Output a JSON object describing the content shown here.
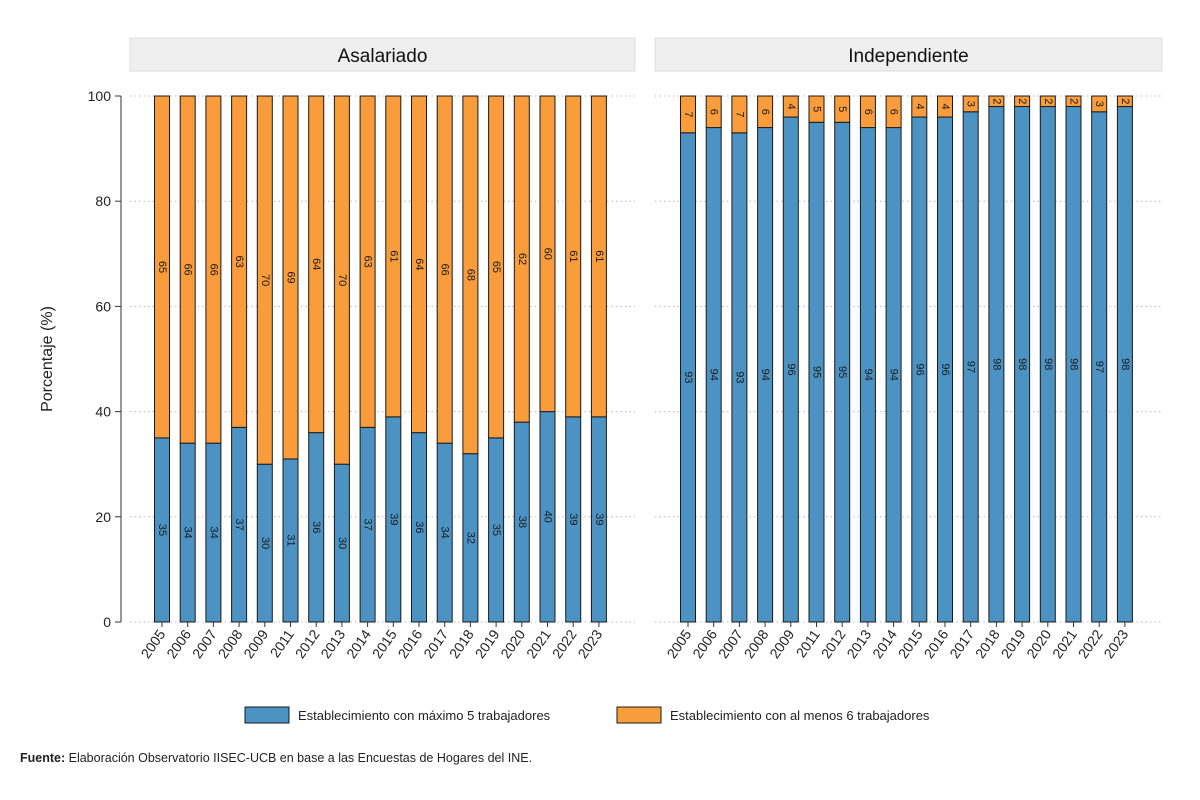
{
  "chart_data": {
    "type": "bar",
    "stacked": true,
    "percent": true,
    "ylabel": "Porcentaje (%)",
    "ylim": [
      0,
      100
    ],
    "yticks": [
      0,
      20,
      40,
      60,
      80,
      100
    ],
    "grid": true,
    "legend_position": "bottom",
    "categories": [
      "2005",
      "2006",
      "2007",
      "2008",
      "2009",
      "2011",
      "2012",
      "2013",
      "2014",
      "2015",
      "2016",
      "2017",
      "2018",
      "2019",
      "2020",
      "2021",
      "2022",
      "2023"
    ],
    "series_names": [
      "Establecimiento con máximo 5 trabajadores",
      "Establecimiento con al menos 6 trabajadores"
    ],
    "colors": [
      "#4c93c4",
      "#f99c3c"
    ],
    "panels": [
      {
        "title": "Asalariado",
        "series": [
          {
            "name": "Establecimiento con máximo 5 trabajadores",
            "values": [
              35,
              34,
              34,
              37,
              30,
              31,
              36,
              30,
              37,
              39,
              36,
              34,
              32,
              35,
              38,
              40,
              39,
              39
            ]
          },
          {
            "name": "Establecimiento con al menos 6 trabajadores",
            "values": [
              65,
              66,
              66,
              63,
              70,
              69,
              64,
              70,
              63,
              61,
              64,
              66,
              68,
              65,
              62,
              60,
              61,
              61
            ]
          }
        ]
      },
      {
        "title": "Independiente",
        "series": [
          {
            "name": "Establecimiento con máximo 5 trabajadores",
            "values": [
              93,
              94,
              93,
              94,
              96,
              95,
              95,
              94,
              94,
              96,
              96,
              97,
              98,
              98,
              98,
              98,
              97,
              98
            ]
          },
          {
            "name": "Establecimiento con al menos 6 trabajadores",
            "values": [
              7,
              6,
              7,
              6,
              4,
              5,
              5,
              6,
              6,
              4,
              4,
              3,
              2,
              2,
              2,
              2,
              3,
              2
            ]
          }
        ]
      }
    ]
  },
  "footnote": {
    "label": "Fuente:",
    "text": " Elaboración Observatorio IISEC-UCB en base a las Encuestas de Hogares del INE."
  }
}
